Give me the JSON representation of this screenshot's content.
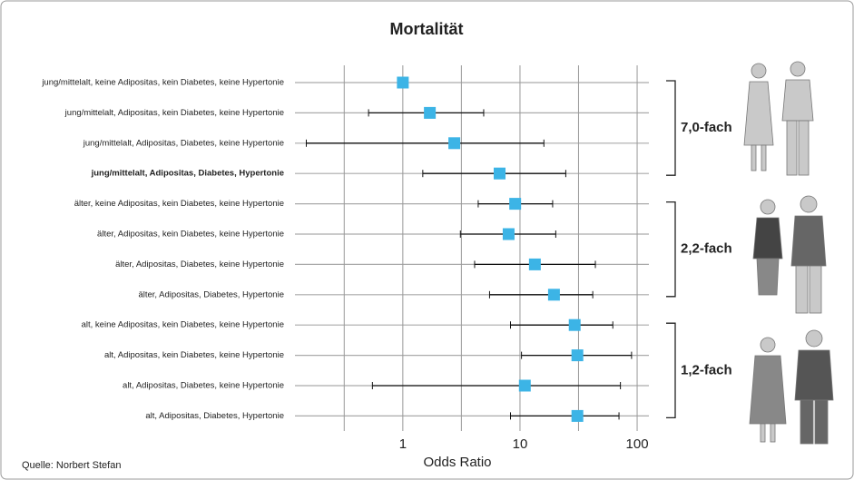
{
  "chart_data": {
    "type": "forest",
    "title": "Mortalität",
    "title_color": "#1a9fd9",
    "x_label": "Odds Ratio",
    "source": "Quelle: Norbert Stefan",
    "log_x": true,
    "grid": true,
    "xlim": [
      0.12,
      126
    ],
    "xticks": [
      1,
      10,
      100
    ],
    "minor_xticks": [
      0.316,
      3.16,
      31.6
    ],
    "color": "#3cb4e6",
    "highlight_index": 3,
    "highlight_color": "#1a9fd9",
    "categories": [
      "jung/mittelalt, keine Adipositas, kein Diabetes, keine Hypertonie",
      "jung/mittelalt, Adipositas, kein Diabetes, keine Hypertonie",
      "jung/mittelalt, Adipositas, Diabetes, keine Hypertonie",
      "jung/mittelalt, Adipositas, Diabetes, Hypertonie",
      "älter, keine Adipositas, kein Diabetes, keine Hypertonie",
      "älter, Adipositas, kein Diabetes, keine Hypertonie",
      "älter, Adipositas, Diabetes, keine Hypertonie",
      "älter, Adipositas, Diabetes, Hypertonie",
      "alt, keine Adipositas, kein Diabetes, keine Hypertonie",
      "alt, Adipositas, kein Diabetes, keine Hypertonie",
      "alt, Adipositas, Diabetes, keine Hypertonie",
      "alt, Adipositas, Diabetes, Hypertonie"
    ],
    "values": [
      1.0,
      1.7,
      2.75,
      6.7,
      9.1,
      8.0,
      13.4,
      19.5,
      29.3,
      30.9,
      11.0,
      30.9
    ],
    "lower": [
      null,
      0.51,
      0.15,
      1.48,
      4.4,
      3.1,
      4.1,
      5.5,
      8.3,
      10.3,
      0.55,
      8.3
    ],
    "upper": [
      null,
      4.9,
      16,
      24.6,
      19,
      20.2,
      44,
      41.8,
      62,
      89.6,
      72,
      70
    ],
    "groups": [
      {
        "label": "7,0-fach",
        "count": 4,
        "color": "#1a9fd9"
      },
      {
        "label": "2,2-fach",
        "count": 4,
        "color": "#222222"
      },
      {
        "label": "1,2-fach",
        "count": 4,
        "color": "#222222"
      }
    ]
  }
}
